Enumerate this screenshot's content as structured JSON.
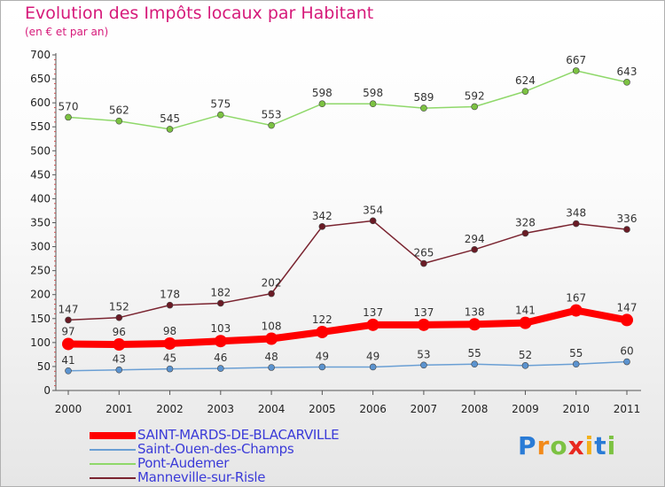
{
  "header": {
    "title": "Evolution des Impôts locaux par Habitant",
    "subtitle": "(en € et par an)"
  },
  "brand": {
    "letters": [
      {
        "char": "P",
        "color": "#2a7bd6"
      },
      {
        "char": "r",
        "color": "#f28a1a"
      },
      {
        "char": "o",
        "color": "#7cc242"
      },
      {
        "char": "x",
        "color": "#e8281f"
      },
      {
        "char": "i",
        "color": "#f2b01a"
      },
      {
        "char": "t",
        "color": "#2a7bd6"
      },
      {
        "char": "i",
        "color": "#7cc242"
      }
    ]
  },
  "chart_data": {
    "type": "line",
    "title": "Evolution des Impôts locaux par Habitant",
    "subtitle": "(en € et par an)",
    "x": [
      "2000",
      "2001",
      "2002",
      "2003",
      "2004",
      "2005",
      "2006",
      "2007",
      "2008",
      "2009",
      "2010",
      "2011"
    ],
    "ylim": [
      0,
      700
    ],
    "yticks": [
      "0",
      "50",
      "100",
      "150",
      "200",
      "250",
      "300",
      "350",
      "400",
      "450",
      "500",
      "550",
      "600",
      "650",
      "700"
    ],
    "grid": false,
    "legend": "bottom-left",
    "series": [
      {
        "name": "SAINT-MARDS-DE-BLACARVILLE",
        "color": "#ff0000",
        "values": [
          97,
          96,
          98,
          103,
          108,
          122,
          137,
          137,
          138,
          141,
          167,
          147
        ]
      },
      {
        "name": "Saint-Ouen-des-Champs",
        "color": "#6a9fd4",
        "values": [
          41,
          43,
          45,
          46,
          48,
          49,
          49,
          53,
          55,
          52,
          55,
          60
        ]
      },
      {
        "name": "Pont-Audemer",
        "color": "#8fd86a",
        "values": [
          570,
          562,
          545,
          575,
          553,
          598,
          598,
          589,
          592,
          624,
          667,
          643
        ]
      },
      {
        "name": "Manneville-sur-Risle",
        "color": "#7a2430",
        "values": [
          147,
          152,
          178,
          182,
          202,
          342,
          354,
          265,
          294,
          328,
          348,
          336
        ]
      }
    ]
  }
}
